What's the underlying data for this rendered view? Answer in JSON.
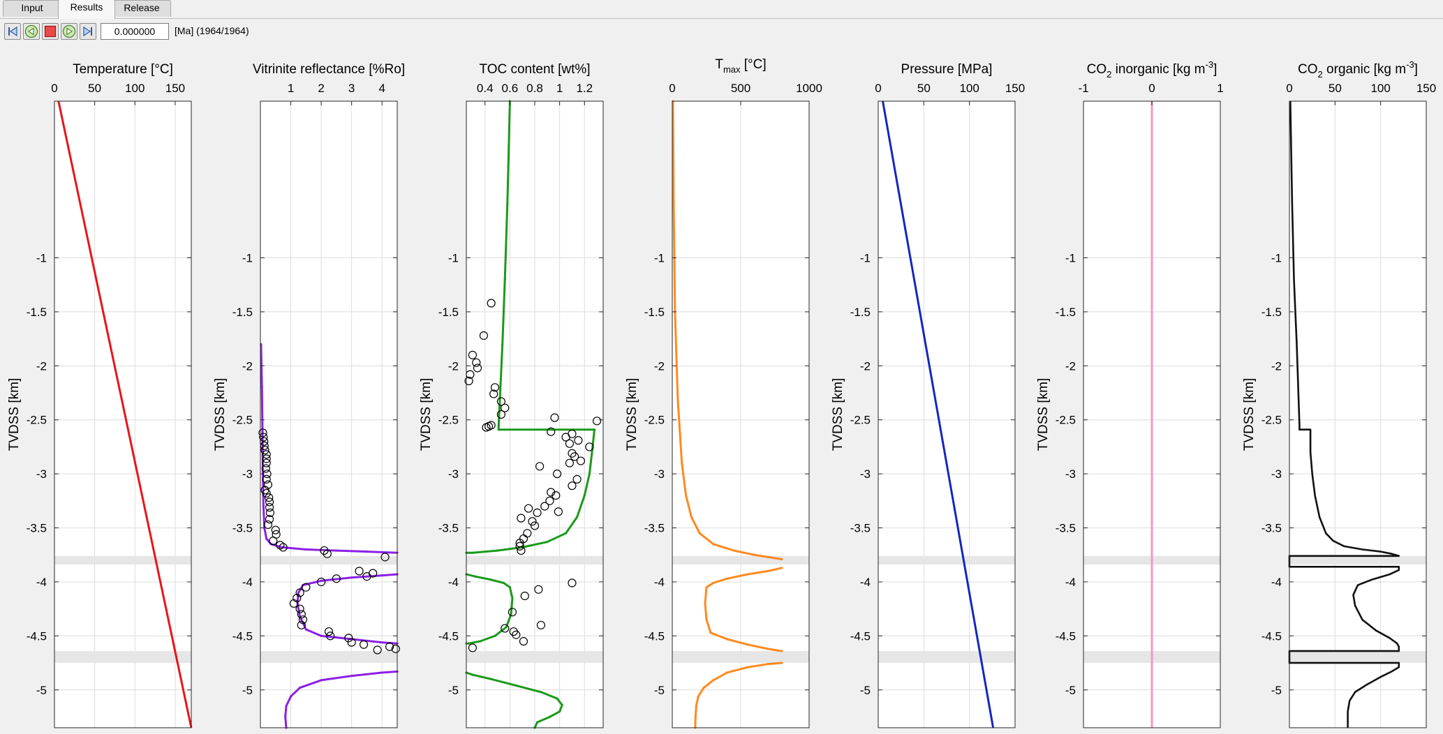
{
  "tabs": [
    {
      "label": "Input",
      "active": false
    },
    {
      "label": "Results",
      "active": true
    },
    {
      "label": "Release",
      "active": false
    }
  ],
  "toolbar": {
    "time_value": "0.000000",
    "time_label": "[Ma] (1964/1964)",
    "buttons": [
      "first-frame-icon",
      "step-back-icon",
      "stop-icon",
      "play-icon",
      "last-frame-icon"
    ]
  },
  "colors": {
    "temperature": "#e8141a",
    "vitrinite": "#8b1fe6",
    "toc": "#1a9a1a",
    "tmax": "#ff8a1f",
    "pressure": "#1426c0",
    "co2_inorganic": "#f29ac0",
    "co2_organic": "#111111",
    "band": "#e6e6e6",
    "grid": "#dcdcdc"
  },
  "shared": {
    "ylabel": "TVDSS [km]",
    "ylim": [
      -5.35,
      0.45
    ],
    "yticks": [
      -1,
      -1.5,
      -2,
      -2.5,
      -3,
      -3.5,
      -4,
      -4.5,
      -5
    ],
    "ytick_labels": [
      "-1",
      "-1.5",
      "-2",
      "-2.5",
      "-3",
      "-3.5",
      "-4",
      "-4.5",
      "-5"
    ],
    "bands": [
      [
        -3.84,
        -3.76
      ],
      [
        -4.75,
        -4.64
      ]
    ]
  },
  "chart_data": [
    {
      "type": "line",
      "title": "Temperature [°C]",
      "xlim": [
        0,
        170
      ],
      "xticks": [
        0,
        50,
        100,
        150
      ],
      "xtick_labels": [
        "0",
        "50",
        "100",
        "150"
      ],
      "series": [
        {
          "x": [
            5,
            170
          ],
          "y": [
            0.45,
            -5.35
          ]
        }
      ]
    },
    {
      "type": "line",
      "title": "Vitrinite reflectance [%Ro]",
      "xlim": [
        0,
        4.5
      ],
      "xticks": [
        1,
        2,
        3,
        4
      ],
      "xtick_labels": [
        "1",
        "2",
        "3",
        "4"
      ],
      "series": [
        {
          "x": [
            0.02,
            0.05,
            0.07,
            0.08,
            0.1,
            0.13,
            0.2,
            0.35,
            0.7,
            1.5,
            2.5,
            3.5,
            4.5
          ],
          "y": [
            -1.8,
            -2.2,
            -2.6,
            -3.0,
            -3.3,
            -3.5,
            -3.6,
            -3.65,
            -3.68,
            -3.7,
            -3.71,
            -3.72,
            -3.73
          ]
        },
        {
          "x": [
            4.5,
            4.0,
            3.0,
            2.0,
            1.4,
            1.25,
            1.22,
            1.3,
            1.5,
            2.0,
            3.0,
            4.0,
            4.5
          ],
          "y": [
            -3.93,
            -3.94,
            -3.96,
            -3.99,
            -4.03,
            -4.1,
            -4.2,
            -4.32,
            -4.44,
            -4.5,
            -4.53,
            -4.56,
            -4.57
          ]
        },
        {
          "x": [
            4.5,
            4.0,
            3.0,
            2.0,
            1.3,
            1.0,
            0.85,
            0.82,
            0.85
          ],
          "y": [
            -4.83,
            -4.84,
            -4.87,
            -4.91,
            -4.98,
            -5.06,
            -5.15,
            -5.25,
            -5.35
          ]
        }
      ],
      "points": [
        {
          "x": 0.08,
          "y": -2.62
        },
        {
          "x": 0.1,
          "y": -2.66
        },
        {
          "x": 0.12,
          "y": -2.7
        },
        {
          "x": 0.13,
          "y": -2.74
        },
        {
          "x": 0.15,
          "y": -2.78
        },
        {
          "x": 0.2,
          "y": -2.82
        },
        {
          "x": 0.2,
          "y": -2.86
        },
        {
          "x": 0.2,
          "y": -2.9
        },
        {
          "x": 0.18,
          "y": -2.95
        },
        {
          "x": 0.22,
          "y": -3.0
        },
        {
          "x": 0.2,
          "y": -3.05
        },
        {
          "x": 0.25,
          "y": -3.1
        },
        {
          "x": 0.15,
          "y": -3.15
        },
        {
          "x": 0.2,
          "y": -3.18
        },
        {
          "x": 0.28,
          "y": -3.22
        },
        {
          "x": 0.3,
          "y": -3.26
        },
        {
          "x": 0.3,
          "y": -3.31
        },
        {
          "x": 0.32,
          "y": -3.36
        },
        {
          "x": 0.3,
          "y": -3.42
        },
        {
          "x": 0.25,
          "y": -3.47
        },
        {
          "x": 0.5,
          "y": -3.52
        },
        {
          "x": 0.52,
          "y": -3.56
        },
        {
          "x": 0.42,
          "y": -3.62
        },
        {
          "x": 0.65,
          "y": -3.66
        },
        {
          "x": 0.75,
          "y": -3.68
        },
        {
          "x": 2.1,
          "y": -3.71
        },
        {
          "x": 2.2,
          "y": -3.74
        },
        {
          "x": 4.1,
          "y": -3.77
        },
        {
          "x": 3.25,
          "y": -3.9
        },
        {
          "x": 3.5,
          "y": -3.95
        },
        {
          "x": 3.7,
          "y": -3.92
        },
        {
          "x": 2.5,
          "y": -3.97
        },
        {
          "x": 2.0,
          "y": -4.0
        },
        {
          "x": 1.5,
          "y": -4.05
        },
        {
          "x": 1.3,
          "y": -4.1
        },
        {
          "x": 1.2,
          "y": -4.15
        },
        {
          "x": 1.1,
          "y": -4.2
        },
        {
          "x": 1.3,
          "y": -4.25
        },
        {
          "x": 1.35,
          "y": -4.3
        },
        {
          "x": 1.4,
          "y": -4.35
        },
        {
          "x": 1.35,
          "y": -4.4
        },
        {
          "x": 2.25,
          "y": -4.46
        },
        {
          "x": 2.3,
          "y": -4.5
        },
        {
          "x": 2.9,
          "y": -4.52
        },
        {
          "x": 3.0,
          "y": -4.56
        },
        {
          "x": 3.4,
          "y": -4.58
        },
        {
          "x": 4.25,
          "y": -4.6
        },
        {
          "x": 4.45,
          "y": -4.62
        },
        {
          "x": 3.85,
          "y": -4.63
        }
      ]
    },
    {
      "type": "line",
      "title": "TOC  content [wt%]",
      "xlim": [
        0.25,
        1.35
      ],
      "xticks": [
        0.4,
        0.6,
        0.8,
        1,
        1.2
      ],
      "xtick_labels": [
        "0.4",
        "0.6",
        "0.8",
        "1",
        "1.2"
      ],
      "series": [
        {
          "x": [
            0.6,
            0.58,
            0.56,
            0.54,
            0.52,
            0.51,
            0.51
          ],
          "y": [
            0.45,
            -0.5,
            -1.2,
            -1.8,
            -2.3,
            -2.55,
            -2.59
          ]
        },
        {
          "x": [
            0.51,
            1.28,
            1.26,
            1.24,
            1.2,
            1.14,
            1.05,
            0.9,
            0.7,
            0.5,
            0.3,
            0.25
          ],
          "y": [
            -2.59,
            -2.59,
            -2.8,
            -3.0,
            -3.2,
            -3.4,
            -3.55,
            -3.63,
            -3.68,
            -3.71,
            -3.73,
            -3.73
          ]
        },
        {
          "x": [
            0.25,
            0.32,
            0.45,
            0.55,
            0.6,
            0.62,
            0.61,
            0.57,
            0.48,
            0.36,
            0.27,
            0.25
          ],
          "y": [
            -3.93,
            -3.95,
            -3.98,
            -4.01,
            -4.05,
            -4.15,
            -4.3,
            -4.42,
            -4.5,
            -4.55,
            -4.57,
            -4.57
          ]
        },
        {
          "x": [
            0.25,
            0.3,
            0.45,
            0.65,
            0.85,
            0.98,
            1.02,
            1.0,
            0.92,
            0.82,
            0.8
          ],
          "y": [
            -4.84,
            -4.86,
            -4.9,
            -4.96,
            -5.02,
            -5.08,
            -5.14,
            -5.2,
            -5.25,
            -5.3,
            -5.35
          ]
        }
      ],
      "points": [
        {
          "x": 0.45,
          "y": -1.42
        },
        {
          "x": 0.39,
          "y": -1.72
        },
        {
          "x": 0.3,
          "y": -1.9
        },
        {
          "x": 0.33,
          "y": -1.97
        },
        {
          "x": 0.34,
          "y": -2.02
        },
        {
          "x": 0.28,
          "y": -2.08
        },
        {
          "x": 0.27,
          "y": -2.14
        },
        {
          "x": 0.48,
          "y": -2.2
        },
        {
          "x": 0.47,
          "y": -2.26
        },
        {
          "x": 0.53,
          "y": -2.33
        },
        {
          "x": 0.56,
          "y": -2.39
        },
        {
          "x": 0.53,
          "y": -2.45
        },
        {
          "x": 0.96,
          "y": -2.48
        },
        {
          "x": 1.3,
          "y": -2.51
        },
        {
          "x": 0.43,
          "y": -2.56
        },
        {
          "x": 0.41,
          "y": -2.57
        },
        {
          "x": 0.45,
          "y": -2.55
        },
        {
          "x": 0.93,
          "y": -2.61
        },
        {
          "x": 1.1,
          "y": -2.63
        },
        {
          "x": 1.05,
          "y": -2.66
        },
        {
          "x": 1.15,
          "y": -2.69
        },
        {
          "x": 1.08,
          "y": -2.72
        },
        {
          "x": 1.24,
          "y": -2.75
        },
        {
          "x": 1.1,
          "y": -2.81
        },
        {
          "x": 1.12,
          "y": -2.84
        },
        {
          "x": 1.17,
          "y": -2.88
        },
        {
          "x": 1.08,
          "y": -2.9
        },
        {
          "x": 0.84,
          "y": -2.93
        },
        {
          "x": 0.98,
          "y": -3.0
        },
        {
          "x": 1.14,
          "y": -3.05
        },
        {
          "x": 1.1,
          "y": -3.11
        },
        {
          "x": 0.93,
          "y": -3.17
        },
        {
          "x": 0.97,
          "y": -3.2
        },
        {
          "x": 0.92,
          "y": -3.25
        },
        {
          "x": 0.88,
          "y": -3.3
        },
        {
          "x": 0.75,
          "y": -3.32
        },
        {
          "x": 0.82,
          "y": -3.36
        },
        {
          "x": 0.99,
          "y": -3.35
        },
        {
          "x": 0.69,
          "y": -3.41
        },
        {
          "x": 0.78,
          "y": -3.44
        },
        {
          "x": 0.8,
          "y": -3.48
        },
        {
          "x": 0.74,
          "y": -3.55
        },
        {
          "x": 0.71,
          "y": -3.6
        },
        {
          "x": 0.68,
          "y": -3.64
        },
        {
          "x": 0.68,
          "y": -3.67
        },
        {
          "x": 0.69,
          "y": -3.71
        },
        {
          "x": 1.1,
          "y": -4.01
        },
        {
          "x": 0.83,
          "y": -4.07
        },
        {
          "x": 0.72,
          "y": -4.13
        },
        {
          "x": 0.62,
          "y": -4.28
        },
        {
          "x": 0.85,
          "y": -4.4
        },
        {
          "x": 0.56,
          "y": -4.43
        },
        {
          "x": 0.63,
          "y": -4.46
        },
        {
          "x": 0.65,
          "y": -4.49
        },
        {
          "x": 0.71,
          "y": -4.55
        },
        {
          "x": 0.3,
          "y": -4.61
        }
      ]
    },
    {
      "type": "line",
      "title": "T",
      "title_sub": "max",
      "title_rest": " [°C]",
      "xlim": [
        0,
        1000
      ],
      "xticks": [
        0,
        500,
        1000
      ],
      "xtick_labels": [
        "0",
        "500",
        "1000"
      ],
      "series": [
        {
          "x": [
            5,
            10,
            20,
            40,
            70,
            100,
            140,
            200,
            300,
            450,
            600,
            700,
            800
          ],
          "y": [
            0.45,
            -0.5,
            -1.5,
            -2.3,
            -2.9,
            -3.2,
            -3.4,
            -3.55,
            -3.65,
            -3.71,
            -3.75,
            -3.77,
            -3.79
          ]
        },
        {
          "x": [
            800,
            700,
            550,
            400,
            300,
            250,
            240,
            250,
            280,
            400,
            550,
            700,
            800
          ],
          "y": [
            -3.87,
            -3.9,
            -3.93,
            -3.97,
            -4.01,
            -4.05,
            -4.2,
            -4.35,
            -4.47,
            -4.53,
            -4.58,
            -4.62,
            -4.64
          ]
        },
        {
          "x": [
            800,
            700,
            550,
            400,
            300,
            230,
            190,
            175,
            170,
            168
          ],
          "y": [
            -4.75,
            -4.76,
            -4.79,
            -4.84,
            -4.91,
            -4.98,
            -5.06,
            -5.15,
            -5.25,
            -5.35
          ]
        }
      ]
    },
    {
      "type": "line",
      "title": "Pressure [MPa]",
      "xlim": [
        0,
        150
      ],
      "xticks": [
        0,
        50,
        100,
        150
      ],
      "xtick_labels": [
        "0",
        "50",
        "100",
        "150"
      ],
      "series": [
        {
          "x": [
            5,
            126
          ],
          "y": [
            0.45,
            -5.35
          ]
        }
      ]
    },
    {
      "type": "line",
      "title": "CO",
      "title_sub": "2",
      "title_rest": " inorganic [kg m",
      "title_sup": "-3",
      "title_end": "]",
      "xlim": [
        -1,
        1
      ],
      "xticks": [
        -1,
        0,
        1
      ],
      "xtick_labels": [
        "-1",
        "0",
        "1"
      ],
      "series": [
        {
          "x": [
            0,
            0
          ],
          "y": [
            0.45,
            -5.35
          ]
        }
      ]
    },
    {
      "type": "line",
      "title": "CO",
      "title_sub": "2",
      "title_rest": " organic [kg m",
      "title_sup": "-3",
      "title_end": "]",
      "xlim": [
        0,
        150
      ],
      "xticks": [
        0,
        50,
        100,
        150
      ],
      "xtick_labels": [
        "0",
        "50",
        "100",
        "150"
      ],
      "series": [
        {
          "x": [
            1,
            3,
            5,
            8,
            10,
            11,
            11,
            23,
            23,
            25,
            28,
            33,
            40,
            48,
            60,
            80,
            100,
            112,
            120,
            120,
            0,
            0,
            120,
            120,
            110,
            90,
            75,
            70,
            72,
            80,
            95,
            110,
            118,
            120,
            120,
            0,
            0,
            120,
            120,
            112,
            100,
            85,
            72,
            66,
            64,
            64
          ],
          "y": [
            0.45,
            -0.5,
            -1.2,
            -1.8,
            -2.3,
            -2.55,
            -2.59,
            -2.59,
            -2.8,
            -3.0,
            -3.2,
            -3.4,
            -3.55,
            -3.62,
            -3.67,
            -3.7,
            -3.72,
            -3.74,
            -3.76,
            -3.76,
            -3.76,
            -3.86,
            -3.86,
            -3.89,
            -3.93,
            -3.98,
            -4.03,
            -4.12,
            -4.22,
            -4.35,
            -4.45,
            -4.52,
            -4.57,
            -4.6,
            -4.64,
            -4.64,
            -4.75,
            -4.75,
            -4.79,
            -4.83,
            -4.88,
            -4.95,
            -5.02,
            -5.1,
            -5.2,
            -5.35
          ]
        }
      ]
    }
  ]
}
